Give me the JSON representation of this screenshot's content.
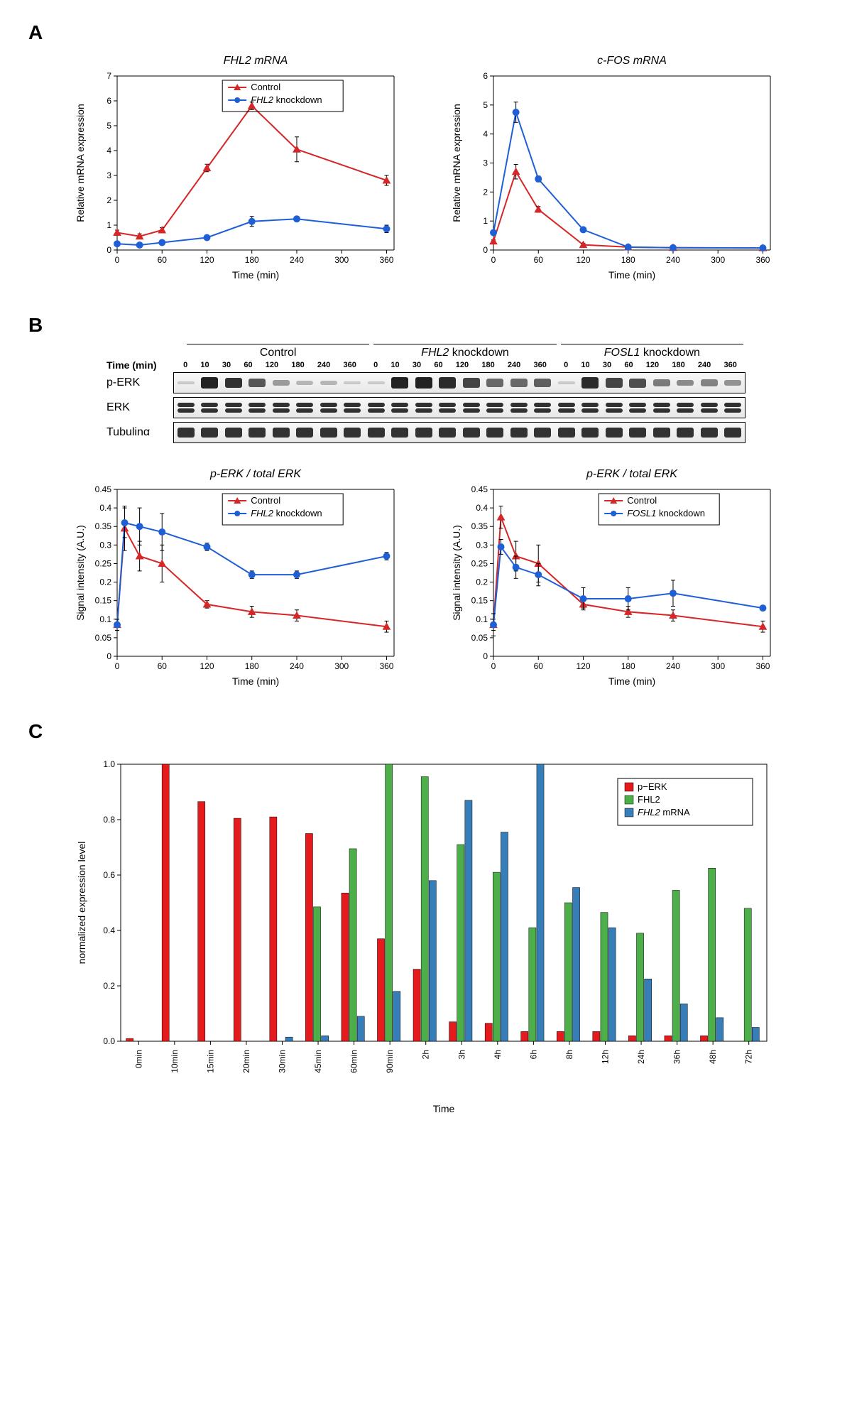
{
  "panelA": {
    "label": "A",
    "chart1": {
      "title": "FHL2 mRNA",
      "xlabel": "Time (min)",
      "ylabel": "Relative mRNA expression",
      "xlim": [
        0,
        370
      ],
      "ylim": [
        0,
        7
      ],
      "xticks": [
        0,
        60,
        120,
        180,
        240,
        300,
        360
      ],
      "yticks": [
        0,
        1,
        2,
        3,
        4,
        5,
        6,
        7
      ],
      "series": [
        {
          "name": "Control",
          "color": "#d62728",
          "marker": "triangle",
          "x": [
            0,
            30,
            60,
            120,
            180,
            240,
            360
          ],
          "y": [
            0.7,
            0.55,
            0.8,
            3.3,
            5.8,
            4.05,
            2.8
          ],
          "err": [
            0.1,
            0.1,
            0.1,
            0.15,
            0.15,
            0.5,
            0.2
          ]
        },
        {
          "name": "FHL2 knockdown",
          "color": "#1f5fd6",
          "marker": "circle",
          "x": [
            0,
            30,
            60,
            120,
            180,
            240,
            360
          ],
          "y": [
            0.25,
            0.2,
            0.3,
            0.5,
            1.15,
            1.25,
            0.85
          ],
          "err": [
            0.05,
            0.05,
            0.05,
            0.05,
            0.2,
            0.1,
            0.15
          ]
        }
      ],
      "legend_items": [
        "Control",
        "FHL2 knockdown"
      ]
    },
    "chart2": {
      "title": "c-FOS mRNA",
      "xlabel": "Time (min)",
      "ylabel": "Relative mRNA expression",
      "xlim": [
        0,
        370
      ],
      "ylim": [
        0,
        6
      ],
      "xticks": [
        0,
        60,
        120,
        180,
        240,
        300,
        360
      ],
      "yticks": [
        0,
        1,
        2,
        3,
        4,
        5,
        6
      ],
      "series": [
        {
          "name": "Control",
          "color": "#d62728",
          "marker": "triangle",
          "x": [
            0,
            30,
            60,
            120,
            180,
            240,
            360
          ],
          "y": [
            0.3,
            2.7,
            1.4,
            0.18,
            0.1,
            0.08,
            0.07
          ],
          "err": [
            0.05,
            0.25,
            0.1,
            0.05,
            0.02,
            0.02,
            0.02
          ]
        },
        {
          "name": "FHL2 knockdown",
          "color": "#1f5fd6",
          "marker": "circle",
          "x": [
            0,
            30,
            60,
            120,
            180,
            240,
            360
          ],
          "y": [
            0.6,
            4.75,
            2.45,
            0.7,
            0.1,
            0.08,
            0.07
          ],
          "err": [
            0.05,
            0.35,
            0.1,
            0.05,
            0.02,
            0.02,
            0.02
          ]
        }
      ]
    }
  },
  "panelB": {
    "label": "B",
    "time_label": "Time (min)",
    "conditions": [
      "Control",
      "FHL2 knockdown",
      "FOSL1 knockdown"
    ],
    "timepoints": [
      "0",
      "10",
      "30",
      "60",
      "120",
      "180",
      "240",
      "360"
    ],
    "rows": [
      {
        "label": "p-ERK",
        "intensities": [
          [
            0.05,
            1.0,
            0.9,
            0.7,
            0.3,
            0.15,
            0.15,
            0.05
          ],
          [
            0.05,
            1.0,
            1.0,
            0.95,
            0.8,
            0.6,
            0.6,
            0.65
          ],
          [
            0.05,
            0.95,
            0.8,
            0.75,
            0.5,
            0.4,
            0.45,
            0.35
          ]
        ]
      },
      {
        "label": "ERK",
        "double": true,
        "intensities": [
          [
            0.9,
            0.9,
            0.9,
            0.9,
            0.9,
            0.9,
            0.9,
            0.9
          ],
          [
            0.9,
            0.9,
            0.9,
            0.9,
            0.9,
            0.9,
            0.9,
            0.9
          ],
          [
            0.9,
            0.9,
            0.9,
            0.9,
            0.9,
            0.9,
            0.9,
            0.9
          ]
        ]
      },
      {
        "label": "Tubulinα",
        "intensities": [
          [
            0.9,
            0.9,
            0.9,
            0.9,
            0.9,
            0.9,
            0.9,
            0.9
          ],
          [
            0.9,
            0.9,
            0.9,
            0.9,
            0.9,
            0.9,
            0.9,
            0.9
          ],
          [
            0.9,
            0.9,
            0.9,
            0.9,
            0.9,
            0.9,
            0.9,
            0.9
          ]
        ]
      }
    ],
    "chart1": {
      "title": "p-ERK / total ERK",
      "xlabel": "Time (min)",
      "ylabel": "Signal intensity (A.U.)",
      "xlim": [
        0,
        370
      ],
      "ylim": [
        0,
        0.45
      ],
      "xticks": [
        0,
        60,
        120,
        180,
        240,
        300,
        360
      ],
      "yticks": [
        0,
        0.05,
        0.1,
        0.15,
        0.2,
        0.25,
        0.3,
        0.35,
        0.4,
        0.45
      ],
      "series": [
        {
          "name": "Control",
          "color": "#d62728",
          "marker": "triangle",
          "x": [
            0,
            10,
            30,
            60,
            120,
            180,
            240,
            360
          ],
          "y": [
            0.085,
            0.345,
            0.27,
            0.25,
            0.14,
            0.12,
            0.11,
            0.08
          ],
          "err": [
            0.015,
            0.06,
            0.04,
            0.05,
            0.01,
            0.015,
            0.015,
            0.015
          ]
        },
        {
          "name": "FHL2 knockdown",
          "color": "#1f5fd6",
          "marker": "circle",
          "x": [
            0,
            10,
            30,
            60,
            120,
            180,
            240,
            360
          ],
          "y": [
            0.085,
            0.36,
            0.35,
            0.335,
            0.295,
            0.22,
            0.22,
            0.27
          ],
          "err": [
            0.015,
            0.04,
            0.05,
            0.05,
            0.01,
            0.01,
            0.01,
            0.01
          ]
        }
      ],
      "legend_items": [
        "Control",
        "FHL2 knockdown"
      ]
    },
    "chart2": {
      "title": "p-ERK / total ERK",
      "xlabel": "Time (min)",
      "ylabel": "Signal intensity (A.U.)",
      "xlim": [
        0,
        370
      ],
      "ylim": [
        0,
        0.45
      ],
      "xticks": [
        0,
        60,
        120,
        180,
        240,
        300,
        360
      ],
      "yticks": [
        0,
        0.05,
        0.1,
        0.15,
        0.2,
        0.25,
        0.3,
        0.35,
        0.4,
        0.45
      ],
      "series": [
        {
          "name": "Control",
          "color": "#d62728",
          "marker": "triangle",
          "x": [
            0,
            10,
            30,
            60,
            120,
            180,
            240,
            360
          ],
          "y": [
            0.085,
            0.375,
            0.27,
            0.25,
            0.14,
            0.12,
            0.11,
            0.08
          ],
          "err": [
            0.015,
            0.03,
            0.04,
            0.05,
            0.01,
            0.015,
            0.015,
            0.015
          ]
        },
        {
          "name": "FOSL1 knockdown",
          "color": "#1f5fd6",
          "marker": "circle",
          "x": [
            0,
            10,
            30,
            60,
            120,
            180,
            240,
            360
          ],
          "y": [
            0.085,
            0.295,
            0.24,
            0.22,
            0.155,
            0.155,
            0.17,
            0.13
          ],
          "err": [
            0.03,
            0.02,
            0.03,
            0.03,
            0.03,
            0.03,
            0.035,
            0.005
          ]
        }
      ],
      "legend_items": [
        "Control",
        "FOSL1 knockdown"
      ]
    }
  },
  "panelC": {
    "label": "C",
    "xlabel": "Time",
    "ylabel": "normalized expression level",
    "ylim": [
      0,
      1.0
    ],
    "yticks": [
      0,
      0.2,
      0.4,
      0.6,
      0.8,
      1.0
    ],
    "categories": [
      "0min",
      "10min",
      "15min",
      "20min",
      "30min",
      "45min",
      "60min",
      "90min",
      "2h",
      "3h",
      "4h",
      "6h",
      "8h",
      "12h",
      "24h",
      "36h",
      "48h",
      "72h"
    ],
    "series": [
      {
        "name": "p−ERK",
        "color": "#e41a1c",
        "y": [
          0.01,
          1.0,
          0.865,
          0.805,
          0.81,
          0.75,
          0.535,
          0.37,
          0.26,
          0.07,
          0.065,
          0.035,
          0.035,
          0.035,
          0.02,
          0.02,
          0.02,
          0.0
        ]
      },
      {
        "name": "FHL2",
        "color": "#4daf4a",
        "y": [
          0.0,
          0.0,
          0.0,
          0.0,
          0.0,
          0.485,
          0.695,
          1.0,
          0.955,
          0.71,
          0.61,
          0.41,
          0.5,
          0.465,
          0.39,
          0.545,
          0.625,
          0.48
        ]
      },
      {
        "name": "FHL2 mRNA",
        "color": "#377eb8",
        "y": [
          0.0,
          0.0,
          0.0,
          0.0,
          0.015,
          0.02,
          0.09,
          0.18,
          0.58,
          0.87,
          0.755,
          1.0,
          0.555,
          0.41,
          0.225,
          0.135,
          0.085,
          0.05
        ]
      }
    ]
  },
  "colors": {
    "bg": "#ffffff",
    "axis": "#000000"
  }
}
